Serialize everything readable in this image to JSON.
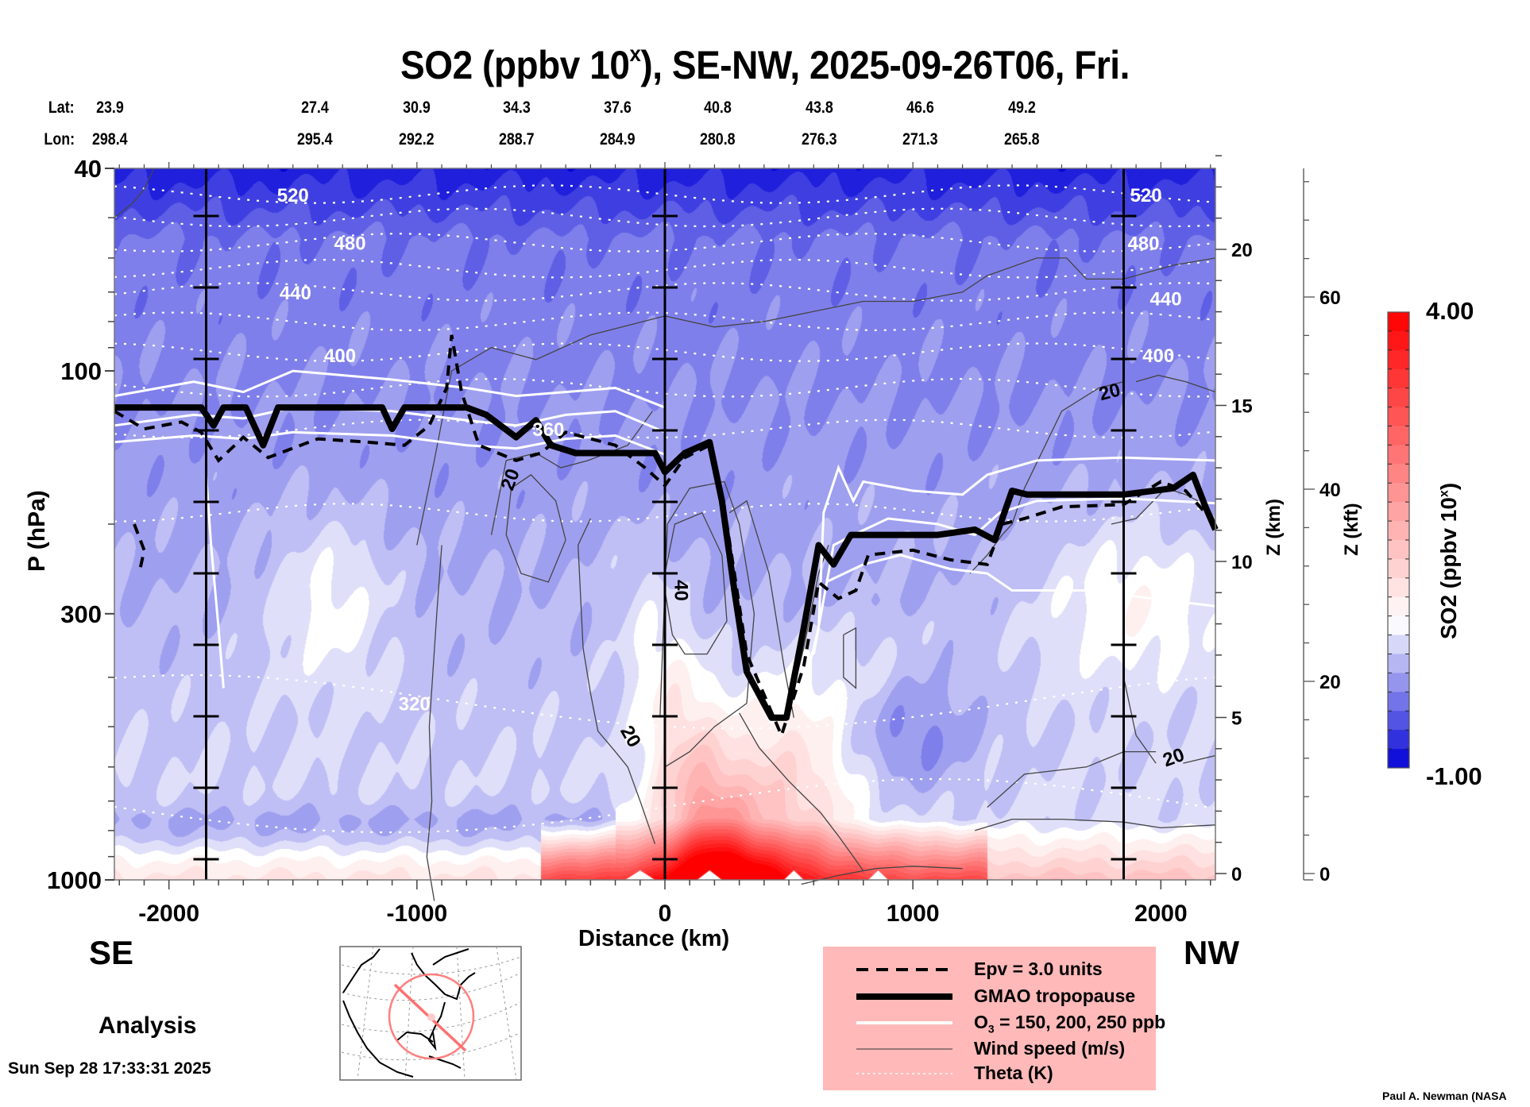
{
  "chart_data": {
    "type": "heatmap",
    "title": "SO2 (ppbv 10",
    "title_sup": "x",
    "title_rest": "), SE-NW, 2025-09-26T06, Fri.",
    "xlabel": "Distance (km)",
    "ylabel": "P (hPa)",
    "y2label": "Z (km)",
    "y3label": "Z (kft)",
    "colorbar_label": "SO2 (ppbv 10",
    "colorbar_label_sup": "x",
    "colorbar_label_end": ")",
    "colorbar_range": [
      -1.0,
      4.0
    ],
    "colorbar_max_label": "4.00",
    "colorbar_min_label": "-1.00",
    "colorbar_colors": [
      "#0000cc",
      "#ffffff",
      "#ff0000"
    ],
    "xlim": [
      -2220,
      2220
    ],
    "ylim_hpa": [
      1000,
      40
    ],
    "x_ticks": [
      {
        "value": -2000,
        "label": "-2000"
      },
      {
        "value": -1000,
        "label": "-1000"
      },
      {
        "value": 0,
        "label": "0"
      },
      {
        "value": 1000,
        "label": "1000"
      },
      {
        "value": 2000,
        "label": "2000"
      }
    ],
    "p_ticks": [
      {
        "value": 40,
        "label": "40"
      },
      {
        "value": 100,
        "label": "100"
      },
      {
        "value": 300,
        "label": "300"
      },
      {
        "value": 1000,
        "label": "1000"
      }
    ],
    "z_km_ticks": [
      {
        "value": 0,
        "label": "0"
      },
      {
        "value": 5,
        "label": "5"
      },
      {
        "value": 10,
        "label": "10"
      },
      {
        "value": 15,
        "label": "15"
      },
      {
        "value": 20,
        "label": "20"
      }
    ],
    "z_kft_ticks": [
      {
        "value": 0,
        "label": "0"
      },
      {
        "value": 20,
        "label": "20"
      },
      {
        "value": 40,
        "label": "40"
      },
      {
        "value": 60,
        "label": "60"
      }
    ],
    "lat_label": "Lat:",
    "lon_label": "Lon:",
    "lat": [
      "23.9",
      "27.4",
      "30.9",
      "34.3",
      "37.6",
      "40.8",
      "43.8",
      "46.6",
      "49.2"
    ],
    "lon": [
      "298.4",
      "295.4",
      "292.2",
      "288.7",
      "284.9",
      "280.8",
      "276.3",
      "271.3",
      "265.8"
    ],
    "vertical_markers_km": [
      -1850,
      0,
      1850
    ],
    "theta_levels": [
      {
        "value": 520,
        "label": "520",
        "p": 45
      },
      {
        "value": 500,
        "label": "",
        "p": 50
      },
      {
        "value": 480,
        "label": "480",
        "p": 56
      },
      {
        "value": 460,
        "label": "",
        "p": 63
      },
      {
        "value": 440,
        "label": "440",
        "p": 70
      },
      {
        "value": 420,
        "label": "",
        "p": 80
      },
      {
        "value": 400,
        "label": "400",
        "p": 92
      },
      {
        "value": 380,
        "label": "",
        "p": 108
      },
      {
        "value": 360,
        "label": "360",
        "p": 130
      },
      {
        "value": 340,
        "label": "",
        "p": 190
      },
      {
        "value": 320,
        "label": "320",
        "p": 450
      },
      {
        "value": 300,
        "label": "",
        "p": 720
      }
    ],
    "wind_contour_labels": [
      {
        "value": 20,
        "label": "20",
        "x": -600,
        "p": 165
      },
      {
        "value": 20,
        "label": "20",
        "x": -160,
        "p": 530
      },
      {
        "value": 40,
        "label": "40",
        "x": 40,
        "p": 270
      },
      {
        "value": 20,
        "label": "20",
        "x": 1800,
        "p": 113
      },
      {
        "value": 20,
        "label": "20",
        "x": 2060,
        "p": 590
      }
    ],
    "tropopause": [
      [
        -2220,
        118
      ],
      [
        -1870,
        118
      ],
      [
        -1820,
        128
      ],
      [
        -1780,
        118
      ],
      [
        -1690,
        118
      ],
      [
        -1620,
        140
      ],
      [
        -1560,
        118
      ],
      [
        -1140,
        118
      ],
      [
        -1100,
        130
      ],
      [
        -1050,
        118
      ],
      [
        -800,
        118
      ],
      [
        -720,
        122
      ],
      [
        -600,
        135
      ],
      [
        -520,
        125
      ],
      [
        -460,
        140
      ],
      [
        -360,
        145
      ],
      [
        -40,
        145
      ],
      [
        0,
        158
      ],
      [
        80,
        145
      ],
      [
        180,
        138
      ],
      [
        230,
        180
      ],
      [
        280,
        270
      ],
      [
        330,
        390
      ],
      [
        430,
        480
      ],
      [
        490,
        480
      ],
      [
        560,
        320
      ],
      [
        620,
        220
      ],
      [
        680,
        240
      ],
      [
        750,
        210
      ],
      [
        850,
        210
      ],
      [
        1000,
        210
      ],
      [
        1100,
        210
      ],
      [
        1250,
        205
      ],
      [
        1330,
        215
      ],
      [
        1400,
        172
      ],
      [
        1460,
        175
      ],
      [
        1560,
        175
      ],
      [
        1850,
        175
      ],
      [
        2050,
        170
      ],
      [
        2130,
        160
      ],
      [
        2180,
        185
      ],
      [
        2220,
        205
      ]
    ],
    "legend": {
      "items": [
        {
          "style": "dashed",
          "label": "Epv = 3.0 units"
        },
        {
          "style": "thick",
          "label": "GMAO tropopause"
        },
        {
          "style": "white",
          "label": "O",
          "sub": "3",
          "label_rest": " = 150, 200, 250 ppb"
        },
        {
          "style": "thin",
          "label": "Wind speed (m/s)"
        },
        {
          "style": "dotted",
          "label": "Theta (K)"
        }
      ]
    },
    "left_direction": "SE",
    "right_direction": "NW",
    "analysis_label": "Analysis",
    "timestamp": "Sun Sep 28 17:33:31 2025",
    "credit": "Paul A. Newman (NASA"
  }
}
